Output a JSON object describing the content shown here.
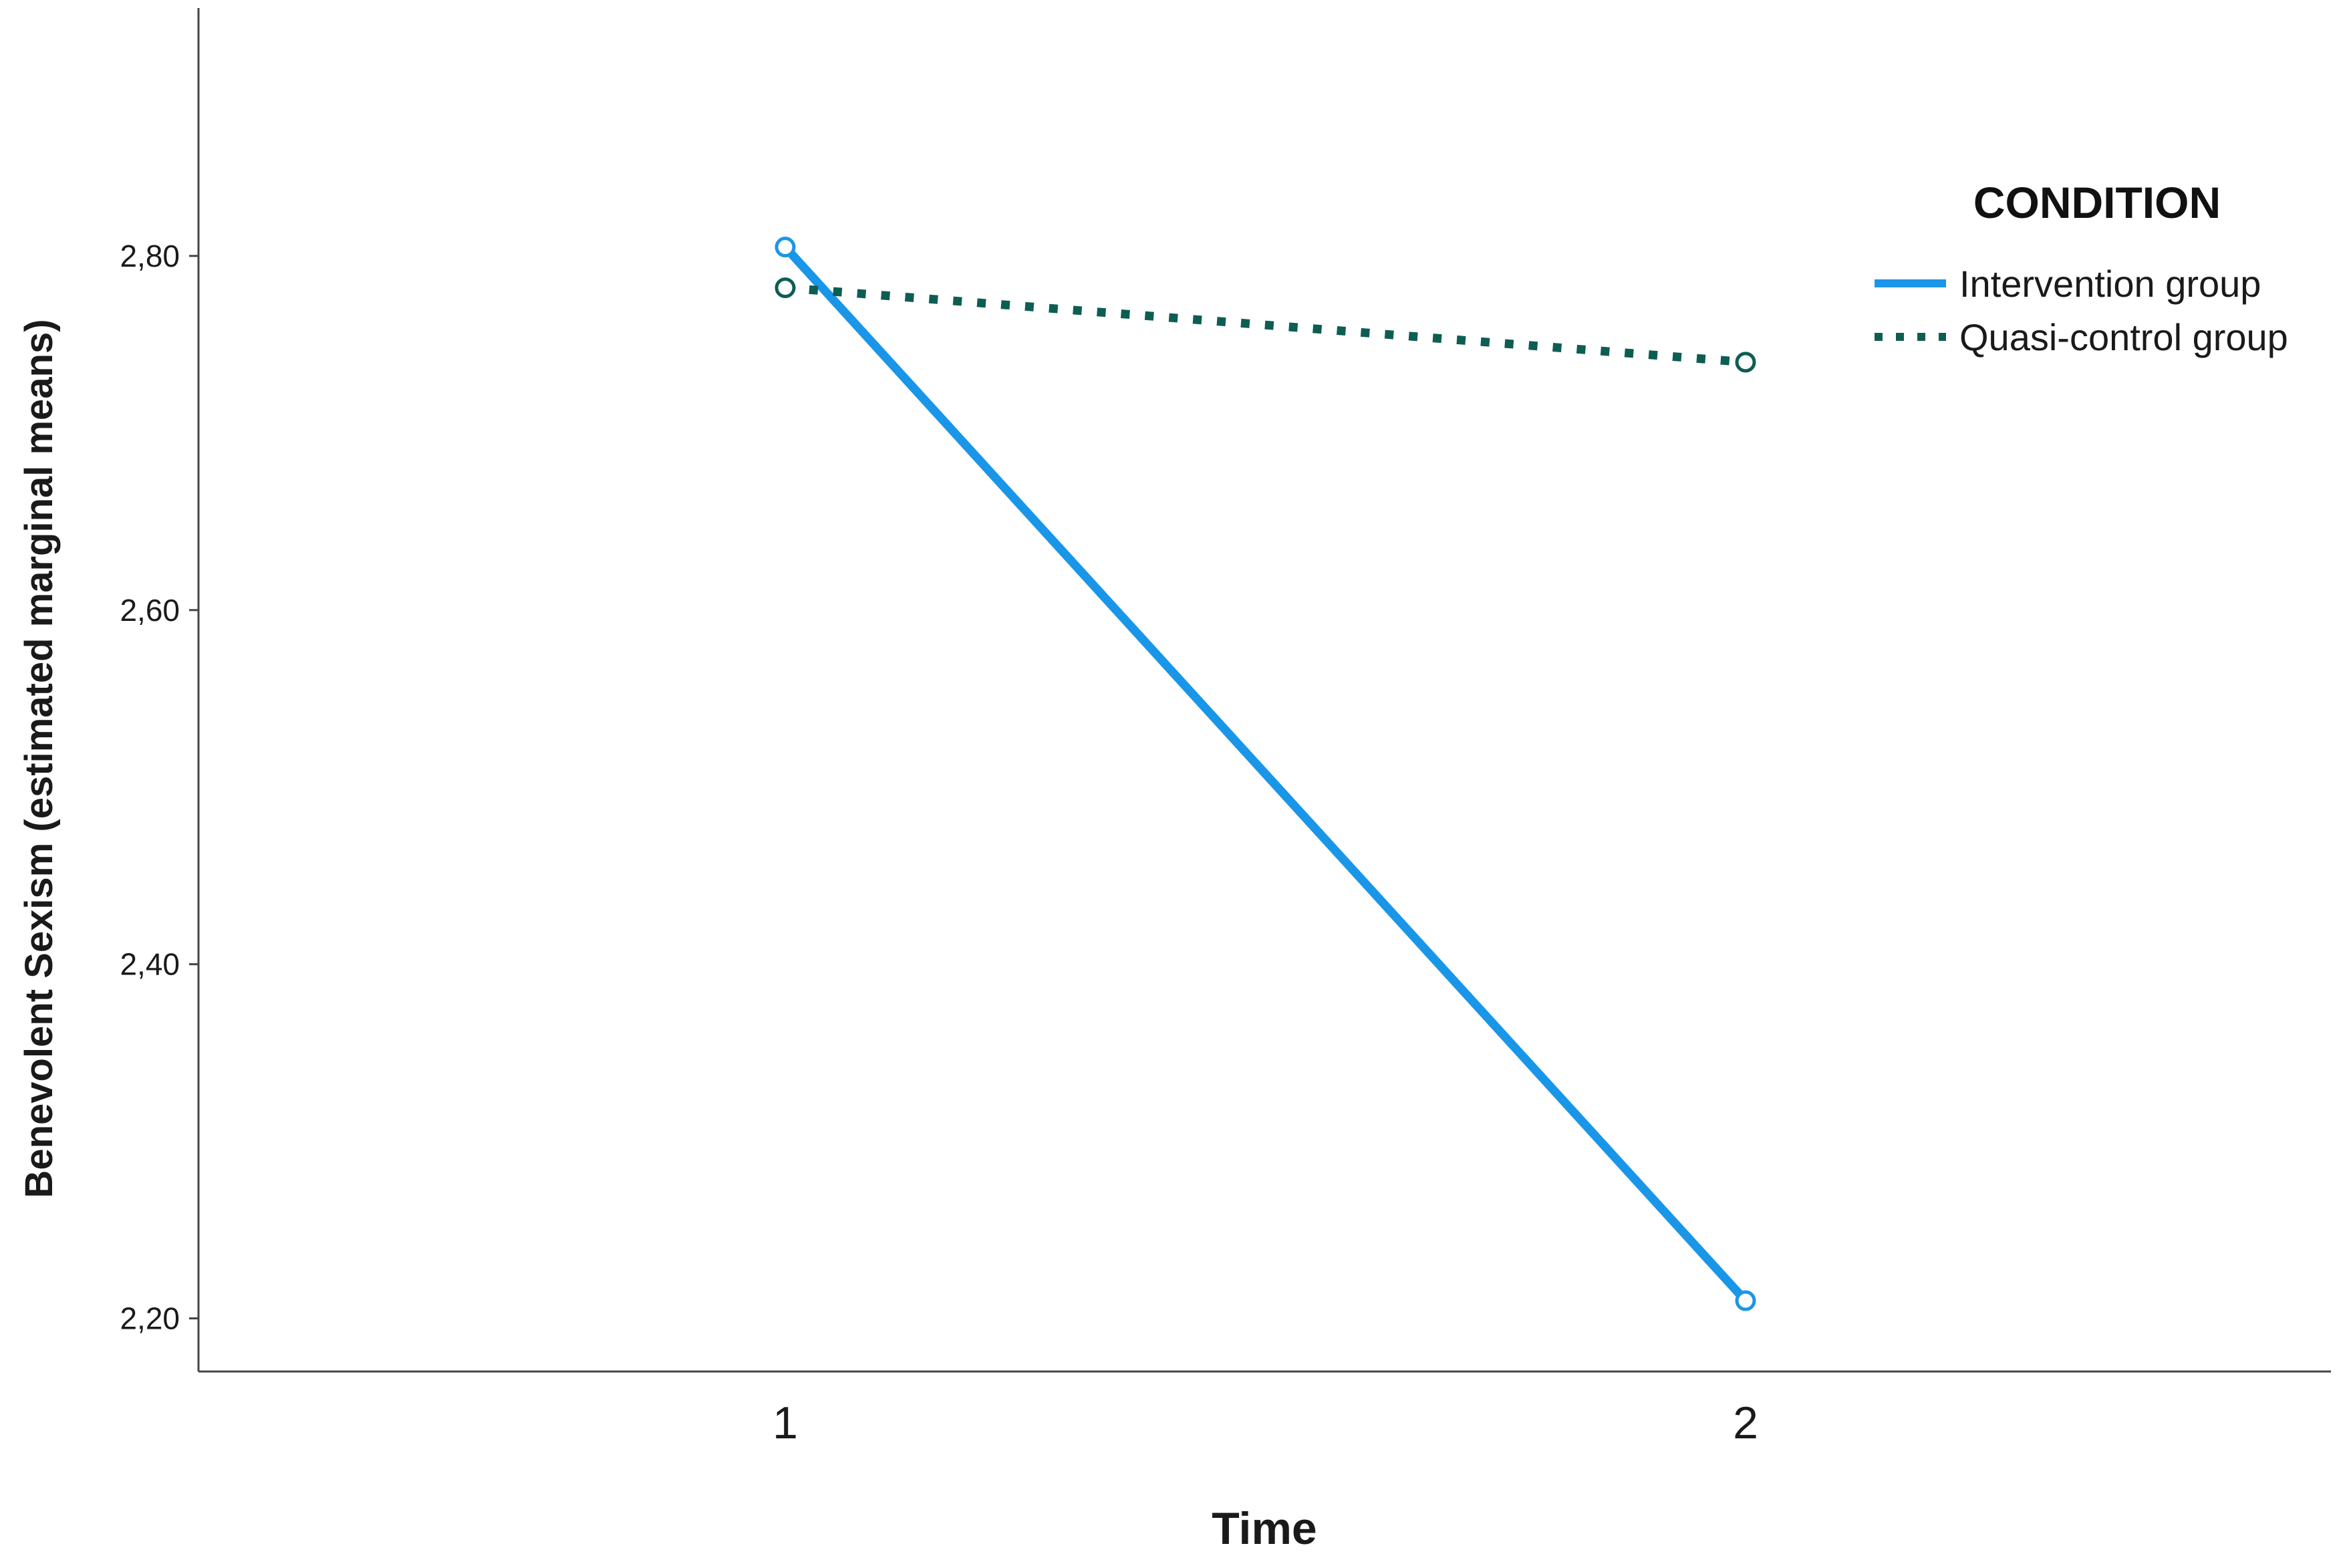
{
  "chart_data": {
    "type": "line",
    "title": "",
    "xlabel": "Time",
    "ylabel": "Benevolent Sexism (estimated marginal means)",
    "categories": [
      "1",
      "2"
    ],
    "ylim": [
      2.17,
      2.94
    ],
    "yticks": [
      2.2,
      2.4,
      2.6,
      2.8
    ],
    "ytick_labels": [
      "2,20",
      "2,40",
      "2,60",
      "2,80"
    ],
    "grid": false,
    "legend": {
      "title": "CONDITION",
      "placement": "top-right"
    },
    "series": [
      {
        "name": "Intervention group",
        "values": [
          2.805,
          2.21
        ],
        "color": "#1a96e8",
        "line_style": "solid",
        "marker": "open-circle"
      },
      {
        "name": "Quasi-control group",
        "values": [
          2.782,
          2.74
        ],
        "color": "#0d5e52",
        "line_style": "dotted",
        "marker": "open-circle"
      }
    ]
  }
}
